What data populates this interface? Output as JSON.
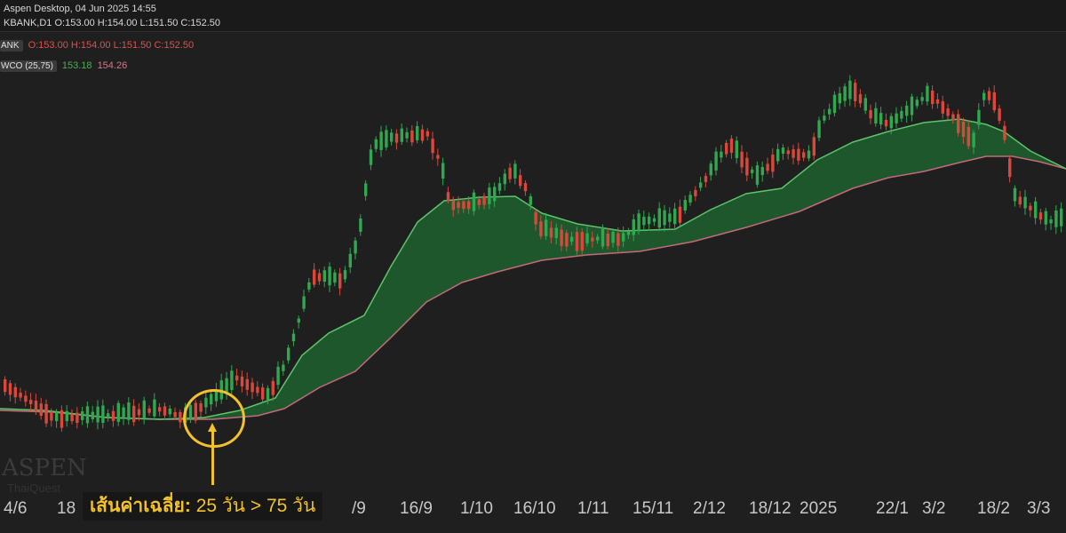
{
  "window": {
    "title": "Aspen Desktop, 04 Jun 2025 14:55",
    "symbol_line": "KBANK,D1",
    "ohlc_line": "O:153.00 H:154.00 L:151.50 C:152.50"
  },
  "legend": {
    "symbol_tag": "ANK",
    "ohlc_red": "O:153.00 H:154.00 L:151.50 C:152.50",
    "indicator_tag": "WCO (25,75)",
    "indicator_fast": "153.18",
    "indicator_slow": "154.26"
  },
  "watermark": {
    "brand": "ASPEN",
    "sub": "ThaiQuest"
  },
  "annotation": {
    "bold_text": "เส้นค่าเฉลี่ย:",
    "normal_text": "25 วัน > 75 วัน"
  },
  "colors": {
    "background": "#1f1f1f",
    "up_candle": "#2fa84f",
    "down_candle": "#d9483b",
    "fast_ma": "#5cc46a",
    "slow_ma": "#c46a7a",
    "fill_green": "#1f6b32",
    "highlight": "#f2c12e"
  },
  "chart_data": {
    "type": "candlestick",
    "symbol": "KBANK",
    "timeframe": "D1",
    "indicators": [
      "MA 25",
      "MA 75"
    ],
    "x_tick_labels": [
      "4/6",
      "18",
      "/9",
      "16/9",
      "1/10",
      "16/10",
      "1/11",
      "15/11",
      "2/12",
      "18/12",
      "2025",
      "22/1",
      "3/2",
      "18/2",
      "3/3"
    ],
    "annotation_markers": [
      {
        "shape": "circle",
        "label": "เส้นค่าเฉลี่ย: 25 วัน > 75 วัน"
      }
    ]
  }
}
